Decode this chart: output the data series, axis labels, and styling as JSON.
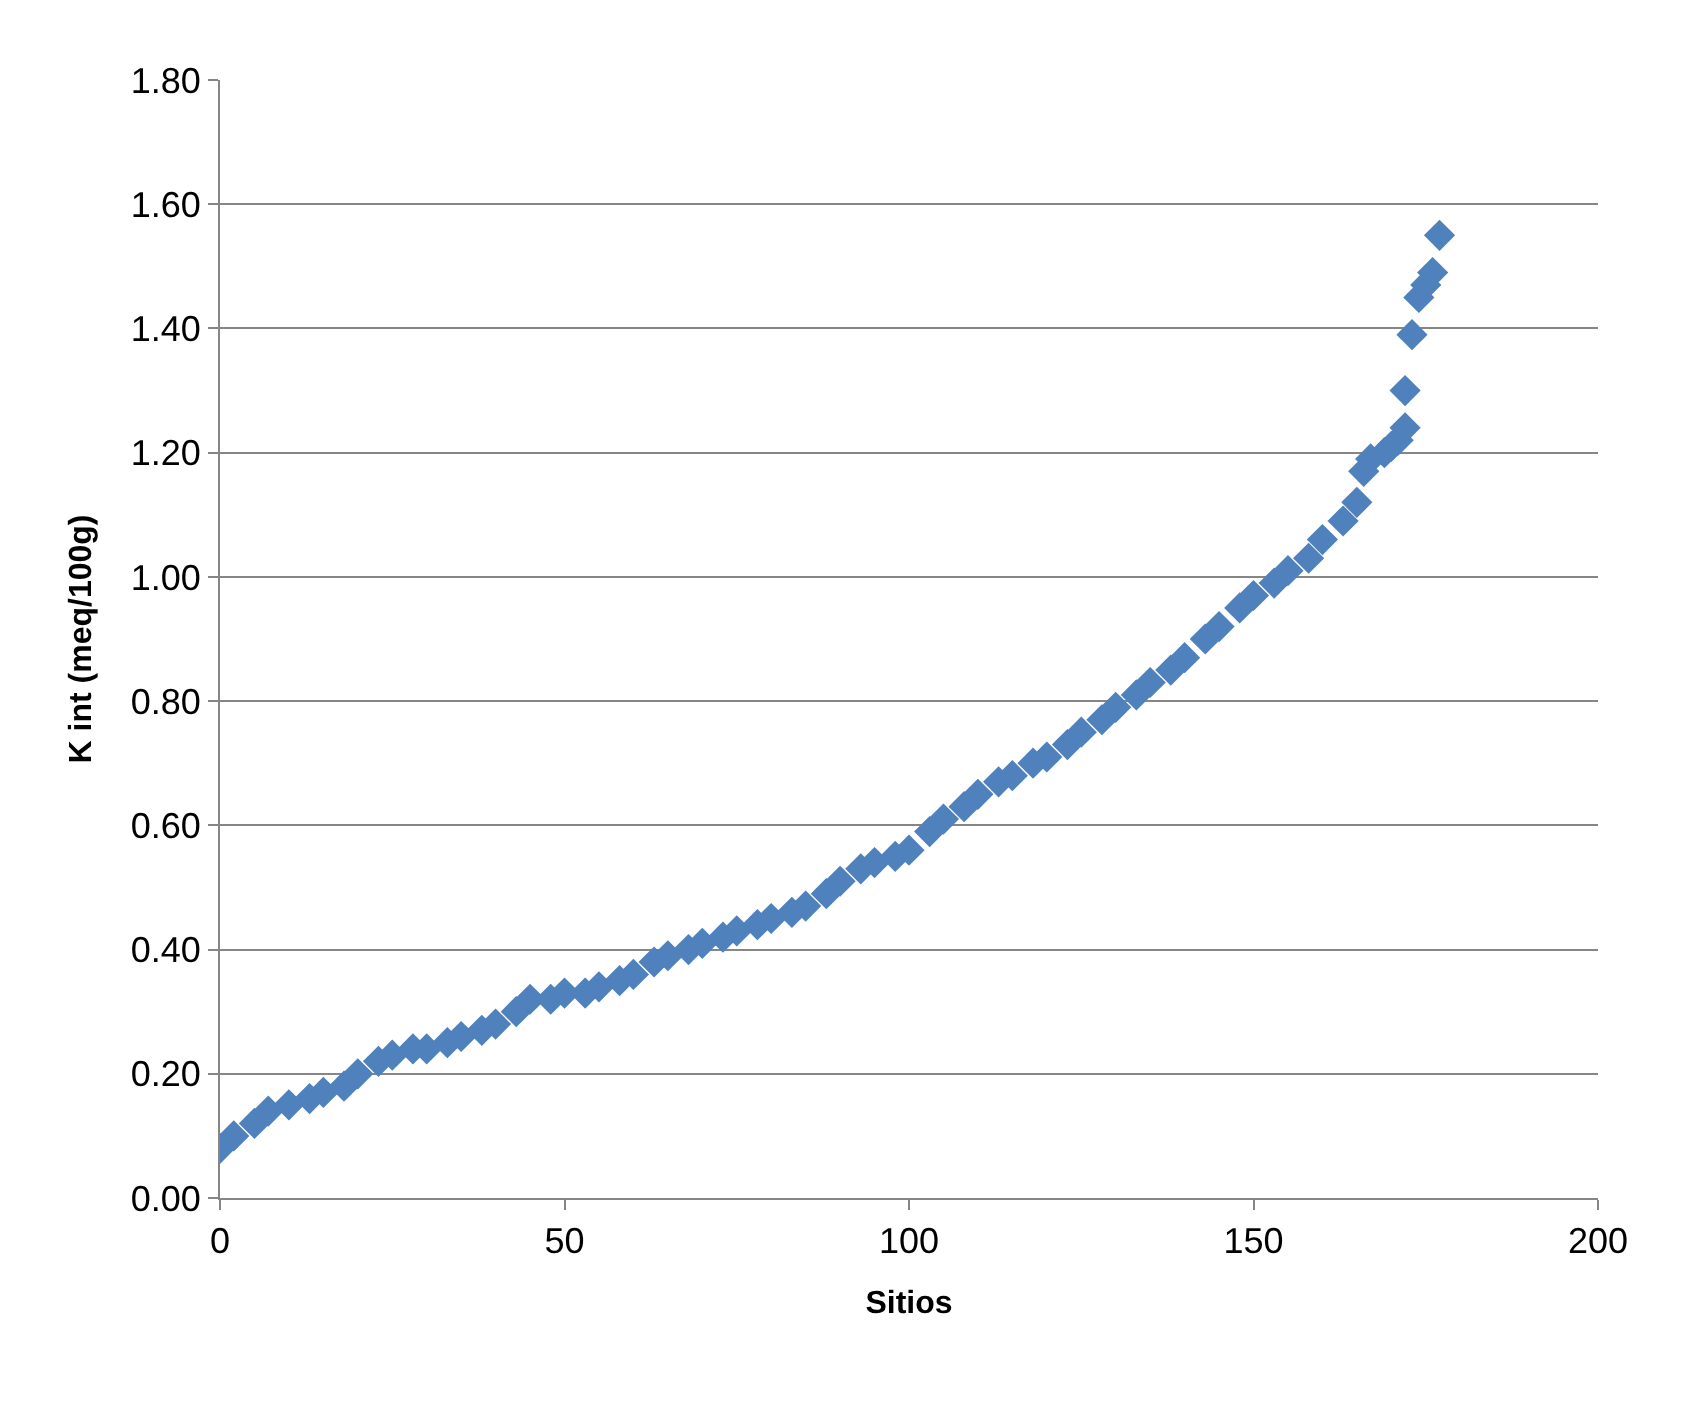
{
  "chart_data": {
    "type": "scatter",
    "xlabel": "Sitios",
    "ylabel": "K int (meq/100g)",
    "x": [
      0,
      2,
      5,
      7,
      10,
      13,
      15,
      18,
      20,
      23,
      25,
      28,
      30,
      33,
      35,
      38,
      40,
      43,
      45,
      48,
      50,
      53,
      55,
      58,
      60,
      63,
      65,
      68,
      70,
      73,
      75,
      78,
      80,
      83,
      85,
      88,
      90,
      93,
      95,
      98,
      100,
      103,
      105,
      108,
      110,
      113,
      115,
      118,
      120,
      123,
      125,
      128,
      130,
      133,
      135,
      138,
      140,
      143,
      145,
      148,
      150,
      153,
      155,
      158,
      160,
      163,
      165,
      166,
      167,
      169,
      170,
      171,
      172,
      172,
      173,
      174,
      175,
      176,
      177
    ],
    "series": [
      {
        "color": "#4f81bd",
        "values": [
          0.08,
          0.1,
          0.12,
          0.14,
          0.15,
          0.16,
          0.17,
          0.18,
          0.2,
          0.22,
          0.23,
          0.24,
          0.24,
          0.25,
          0.26,
          0.27,
          0.28,
          0.3,
          0.32,
          0.32,
          0.33,
          0.33,
          0.34,
          0.35,
          0.36,
          0.38,
          0.39,
          0.4,
          0.41,
          0.42,
          0.43,
          0.44,
          0.45,
          0.46,
          0.47,
          0.49,
          0.51,
          0.53,
          0.54,
          0.55,
          0.56,
          0.59,
          0.61,
          0.63,
          0.65,
          0.67,
          0.68,
          0.7,
          0.71,
          0.73,
          0.75,
          0.77,
          0.79,
          0.81,
          0.83,
          0.85,
          0.87,
          0.9,
          0.92,
          0.95,
          0.97,
          0.99,
          1.01,
          1.03,
          1.06,
          1.09,
          1.12,
          1.17,
          1.19,
          1.2,
          1.21,
          1.22,
          1.24,
          1.3,
          1.39,
          1.45,
          1.47,
          1.49,
          1.55
        ]
      }
    ],
    "xlim": [
      0,
      200
    ],
    "xticks": [
      0,
      50,
      100,
      150,
      200
    ],
    "ylim": [
      0,
      1.8
    ],
    "yticks": [
      {
        "value": 0,
        "label": "0.00"
      },
      {
        "value": 0.2,
        "label": "0.20"
      },
      {
        "value": 0.4,
        "label": "0.40"
      },
      {
        "value": 0.6,
        "label": "0.60"
      },
      {
        "value": 0.8,
        "label": "0.80"
      },
      {
        "value": 1.0,
        "label": "1.00"
      },
      {
        "value": 1.2,
        "label": "1.20"
      },
      {
        "value": 1.4,
        "label": "1.40"
      },
      {
        "value": 1.6,
        "label": "1.60"
      },
      {
        "value": 1.8,
        "label": "1.80"
      }
    ],
    "grid": "y",
    "marker": "diamond",
    "legend": false
  }
}
